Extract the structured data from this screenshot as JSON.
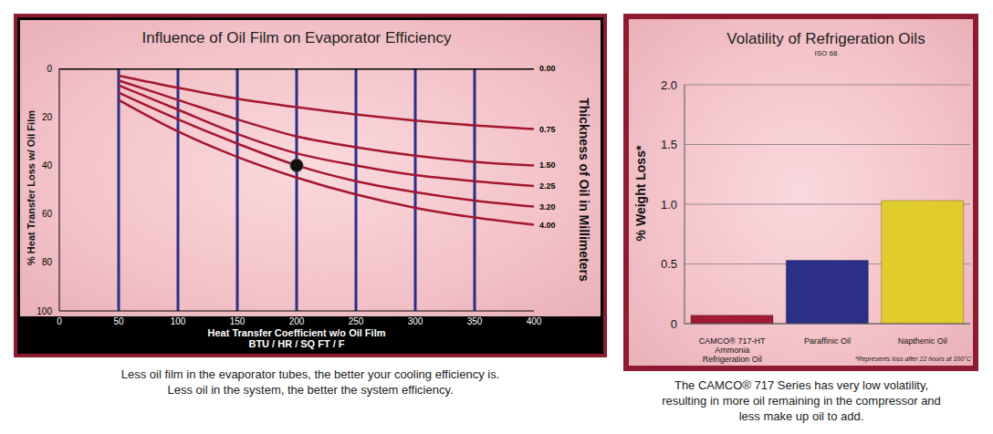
{
  "chart_data": [
    {
      "type": "line",
      "title": "Influence of Oil Film on Evaporator Efficiency",
      "x_label": "Heat Transfer Coefficient w/o Oil Film",
      "x_label_2": "BTU / HR / SQ FT / F",
      "y_label": "% Heat Transfer Loss w/ Oil Film",
      "y2_label": "Thickness of Oil in Millimeters",
      "x": [
        0,
        50,
        100,
        150,
        200,
        250,
        300,
        350,
        400
      ],
      "series": [
        {
          "name": "0.00",
          "color": "#000000",
          "values": [
            0,
            0,
            0,
            0,
            0,
            0,
            0,
            0,
            0
          ]
        },
        {
          "name": "0.75",
          "color": "#a3172f",
          "values": [
            null,
            3,
            8,
            12.5,
            16,
            19,
            21.5,
            23.5,
            25
          ]
        },
        {
          "name": "1.50",
          "color": "#a3172f",
          "values": [
            null,
            5,
            13,
            21,
            28,
            32.5,
            36,
            38.5,
            40
          ]
        },
        {
          "name": "2.25",
          "color": "#a3172f",
          "values": [
            null,
            7,
            17,
            27,
            35,
            40,
            44,
            46.5,
            48.5
          ]
        },
        {
          "name": "3.20",
          "color": "#a3172f",
          "values": [
            null,
            10,
            21,
            31,
            40,
            46.5,
            51,
            54.5,
            57
          ]
        },
        {
          "name": "4.00",
          "color": "#a3172f",
          "values": [
            null,
            13,
            26,
            36.5,
            45,
            52,
            57.5,
            61.5,
            64.5
          ]
        }
      ],
      "marker_point": {
        "x": 200,
        "y": 40
      },
      "xlim": [
        0,
        400
      ],
      "xticks": [
        0,
        50,
        100,
        150,
        200,
        250,
        300,
        350,
        400
      ],
      "ylim": [
        100,
        0
      ],
      "yticks": [
        0,
        20,
        40,
        60,
        80,
        100
      ],
      "grid": "x",
      "caption": [
        "Less oil film in the evaporator tubes, the better your cooling efficiency is.",
        "Less oil in the system, the better the system efficiency."
      ]
    },
    {
      "type": "bar",
      "title": "Volatility of Refrigeration Oils",
      "subtitle": "ISO 68",
      "y_label": "% Weight Loss*",
      "categories": [
        "CAMCO® 717-HT Ammonia Refrigeration Oil",
        "Paraffinic Oil",
        "Napthenic Oil"
      ],
      "values": [
        0.07,
        0.53,
        1.03
      ],
      "colors": [
        "#a31a35",
        "#2b2f86",
        "#e0cc2c"
      ],
      "ylim": [
        0,
        2
      ],
      "yticks": [
        0,
        0.5,
        {
          "value": 1,
          "label": "1.0"
        },
        1.5,
        {
          "value": 2,
          "label": "2.0"
        }
      ],
      "grid": true,
      "note": "*Represents loss after 22 hours at 100°C",
      "caption": [
        "The CAMCO® 717 Series has very low volatility,",
        "resulting in more oil remaining in the compressor and",
        "less make up oil to add."
      ]
    }
  ]
}
